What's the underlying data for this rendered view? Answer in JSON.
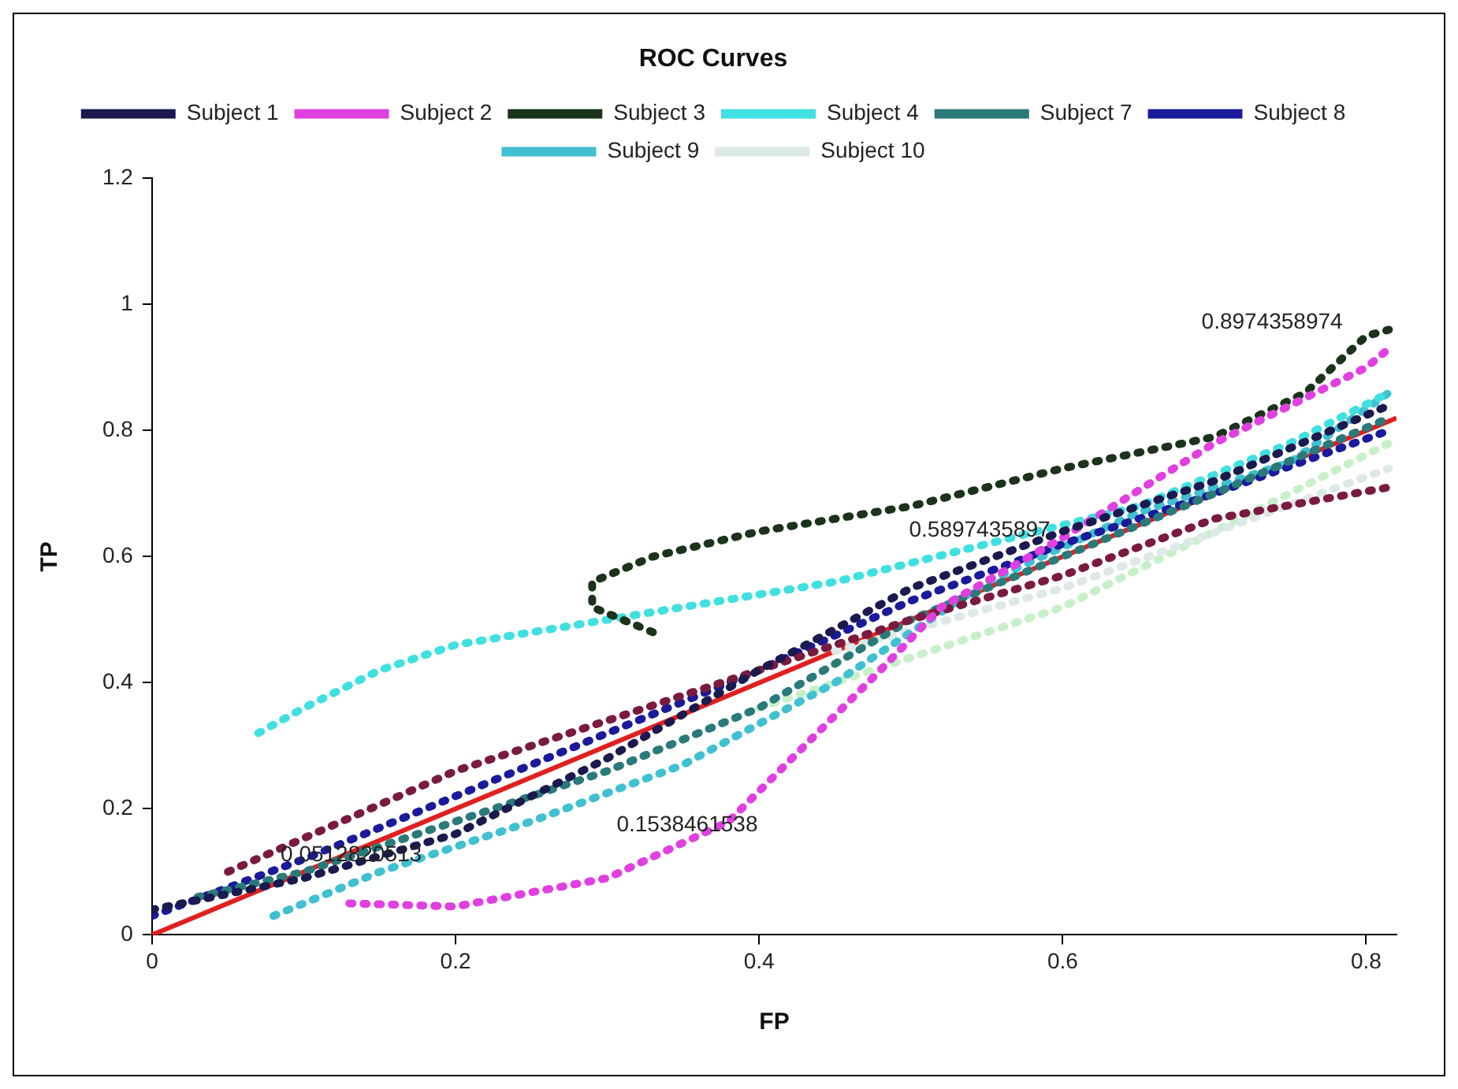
{
  "chart_data": {
    "type": "line",
    "title": "ROC Curves",
    "xlabel": "FP",
    "ylabel": "TP",
    "xlim": [
      0,
      0.82
    ],
    "xticks": [
      0,
      0.2,
      0.4,
      0.6,
      0.8
    ],
    "ylim": [
      0,
      1.2
    ],
    "yticks": [
      0,
      0.2,
      0.4,
      0.6,
      0.8,
      1,
      1.2
    ],
    "grid": false,
    "legend": "top",
    "marker": "none",
    "line_style": "dotted",
    "series": [
      {
        "name": "Subject 1",
        "color": "#1a1a4e",
        "x": [
          0,
          0.1,
          0.2,
          0.3,
          0.4,
          0.5,
          0.6,
          0.7,
          0.815
        ],
        "values": [
          0.04,
          0.09,
          0.16,
          0.28,
          0.42,
          0.55,
          0.64,
          0.72,
          0.84
        ]
      },
      {
        "name": "Subject 2",
        "color": "#e040e0",
        "x": [
          0.13,
          0.2,
          0.3,
          0.38,
          0.43,
          0.48,
          0.52,
          0.6,
          0.7,
          0.8,
          0.815
        ],
        "values": [
          0.05,
          0.045,
          0.09,
          0.18,
          0.3,
          0.42,
          0.52,
          0.63,
          0.78,
          0.9,
          0.93
        ]
      },
      {
        "name": "Subject 3",
        "color": "#1a331a",
        "x": [
          0.33,
          0.29,
          0.29,
          0.33,
          0.4,
          0.5,
          0.6,
          0.7,
          0.76,
          0.8,
          0.815
        ],
        "values": [
          0.48,
          0.52,
          0.56,
          0.6,
          0.64,
          0.68,
          0.74,
          0.79,
          0.86,
          0.95,
          0.96
        ]
      },
      {
        "name": "Subject 4",
        "color": "#40e0e0",
        "x": [
          0.07,
          0.1,
          0.15,
          0.2,
          0.25,
          0.3,
          0.35,
          0.45,
          0.55,
          0.65,
          0.75,
          0.815
        ],
        "values": [
          0.32,
          0.36,
          0.42,
          0.46,
          0.48,
          0.5,
          0.52,
          0.56,
          0.62,
          0.68,
          0.78,
          0.86
        ]
      },
      {
        "color": "#7a1a40",
        "x": [
          0.05,
          0.2,
          0.3,
          0.4,
          0.5,
          0.6,
          0.7,
          0.815
        ],
        "values": [
          0.1,
          0.26,
          0.34,
          0.42,
          0.5,
          0.57,
          0.66,
          0.71
        ]
      },
      {
        "name": "Subject 7",
        "color": "#2a7a7a",
        "x": [
          0.03,
          0.1,
          0.2,
          0.3,
          0.4,
          0.5,
          0.6,
          0.7,
          0.815
        ],
        "values": [
          0.06,
          0.1,
          0.18,
          0.26,
          0.36,
          0.5,
          0.6,
          0.7,
          0.82
        ]
      },
      {
        "name": "Subject 8",
        "color": "#1a1a9a",
        "x": [
          0,
          0.1,
          0.2,
          0.3,
          0.4,
          0.5,
          0.6,
          0.7,
          0.815
        ],
        "values": [
          0.03,
          0.12,
          0.22,
          0.32,
          0.42,
          0.53,
          0.62,
          0.7,
          0.8
        ]
      },
      {
        "name": "Subject 9",
        "color": "#40c0d0",
        "x": [
          0.08,
          0.15,
          0.25,
          0.35,
          0.45,
          0.55,
          0.65,
          0.75,
          0.815
        ],
        "values": [
          0.03,
          0.1,
          0.18,
          0.27,
          0.4,
          0.56,
          0.67,
          0.75,
          0.86
        ]
      },
      {
        "name": "Subject 10",
        "color": "#dde8e8",
        "x": [
          0.45,
          0.6,
          0.815
        ],
        "values": [
          0.45,
          0.55,
          0.74
        ]
      },
      {
        "color": "#c8f0c8",
        "x": [
          0.4,
          0.5,
          0.6,
          0.7,
          0.815
        ],
        "values": [
          0.36,
          0.44,
          0.52,
          0.64,
          0.78
        ]
      },
      {
        "color": "#e02020",
        "line_style": "solid",
        "x": [
          0,
          0.82
        ],
        "values": [
          0,
          0.82
        ]
      }
    ],
    "annotations": [
      "0.0512820513",
      "0.1538461538",
      "0.5897435897",
      "0.8974358974"
    ]
  }
}
